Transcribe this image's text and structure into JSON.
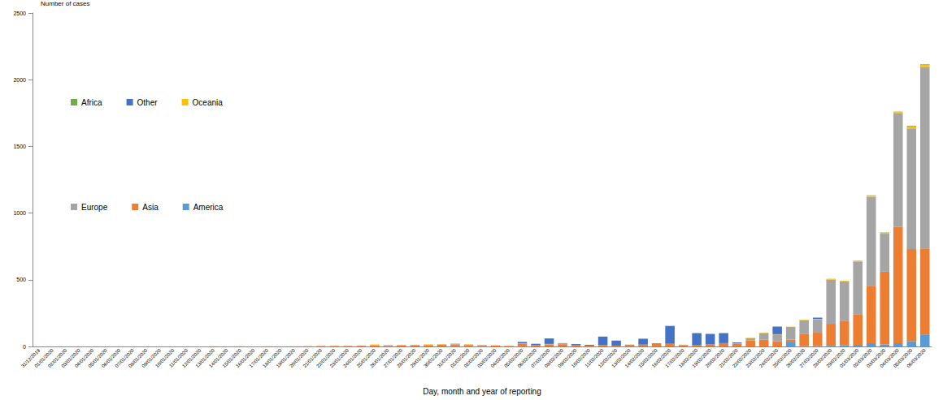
{
  "chart_data": {
    "type": "bar",
    "stacked": true,
    "ylabel": "Number of cases",
    "xlabel": "Day, month and year of reporting",
    "legend": "upper left",
    "grid": false,
    "ylim": [
      0,
      2500
    ],
    "yticks": [
      0,
      500,
      1000,
      1500,
      2000,
      2500
    ],
    "categories": [
      "31/12/2019",
      "01/01/2020",
      "02/01/2020",
      "03/01/2020",
      "04/01/2020",
      "05/01/2020",
      "06/01/2020",
      "07/01/2020",
      "08/01/2020",
      "09/01/2020",
      "10/01/2020",
      "11/01/2020",
      "12/01/2020",
      "13/01/2020",
      "14/01/2020",
      "15/01/2020",
      "16/01/2020",
      "17/01/2020",
      "18/01/2020",
      "19/01/2020",
      "20/01/2020",
      "21/01/2020",
      "22/01/2020",
      "23/01/2020",
      "24/01/2020",
      "25/01/2020",
      "26/01/2020",
      "27/01/2020",
      "28/01/2020",
      "29/01/2020",
      "30/01/2020",
      "31/01/2020",
      "01/02/2020",
      "02/02/2020",
      "03/02/2020",
      "04/02/2020",
      "05/02/2020",
      "06/02/2020",
      "07/02/2020",
      "08/02/2020",
      "09/02/2020",
      "10/02/2020",
      "11/02/2020",
      "12/02/2020",
      "13/02/2020",
      "14/02/2020",
      "15/02/2020",
      "16/02/2020",
      "17/02/2020",
      "18/02/2020",
      "19/02/2020",
      "20/02/2020",
      "21/02/2020",
      "22/02/2020",
      "23/02/2020",
      "24/02/2020",
      "25/02/2020",
      "26/02/2020",
      "27/02/2020",
      "28/02/2020",
      "29/02/2020",
      "01/03/2020",
      "02/03/2020",
      "03/03/2020",
      "04/03/2020",
      "05/03/2020",
      "06/03/2020"
    ],
    "series": [
      {
        "name": "Africa",
        "color": "#70ad47",
        "values": [
          0,
          0,
          0,
          0,
          0,
          0,
          0,
          0,
          0,
          0,
          0,
          0,
          0,
          0,
          0,
          0,
          0,
          0,
          0,
          0,
          0,
          0,
          0,
          0,
          0,
          0,
          0,
          0,
          0,
          0,
          0,
          0,
          0,
          0,
          0,
          0,
          0,
          0,
          0,
          0,
          0,
          0,
          0,
          0,
          0,
          0,
          0,
          0,
          1,
          0,
          0,
          0,
          0,
          0,
          0,
          0,
          0,
          0,
          0,
          1,
          0,
          1,
          2,
          2,
          3,
          5,
          5
        ]
      },
      {
        "name": "Other",
        "color": "#4472c4",
        "values": [
          0,
          0,
          0,
          0,
          0,
          0,
          0,
          0,
          0,
          0,
          0,
          0,
          0,
          0,
          0,
          0,
          0,
          0,
          0,
          0,
          0,
          0,
          0,
          0,
          0,
          0,
          0,
          0,
          0,
          0,
          0,
          0,
          0,
          0,
          0,
          0,
          10,
          10,
          41,
          3,
          6,
          6,
          65,
          39,
          0,
          44,
          0,
          134,
          0,
          88,
          79,
          75,
          6,
          0,
          0,
          57,
          0,
          0,
          10,
          0,
          0,
          0,
          0,
          0,
          0,
          0,
          0
        ]
      },
      {
        "name": "Oceania",
        "color": "#ffc000",
        "values": [
          0,
          0,
          0,
          0,
          0,
          0,
          0,
          0,
          0,
          0,
          0,
          0,
          0,
          0,
          0,
          0,
          0,
          0,
          0,
          0,
          0,
          0,
          0,
          0,
          0,
          4,
          1,
          1,
          0,
          3,
          1,
          1,
          3,
          2,
          0,
          0,
          0,
          0,
          0,
          0,
          0,
          0,
          0,
          0,
          0,
          0,
          0,
          0,
          0,
          0,
          0,
          0,
          0,
          3,
          4,
          2,
          2,
          4,
          3,
          6,
          5,
          6,
          8,
          8,
          12,
          15,
          15
        ]
      },
      {
        "name": "Europe",
        "color": "#a5a5a5",
        "values": [
          0,
          0,
          0,
          0,
          0,
          0,
          0,
          0,
          0,
          0,
          0,
          0,
          0,
          0,
          0,
          0,
          0,
          0,
          0,
          0,
          0,
          0,
          0,
          0,
          0,
          3,
          0,
          0,
          4,
          3,
          2,
          6,
          3,
          0,
          2,
          0,
          3,
          0,
          4,
          5,
          0,
          0,
          2,
          0,
          1,
          0,
          1,
          0,
          2,
          0,
          0,
          0,
          2,
          17,
          50,
          50,
          95,
          105,
          100,
          330,
          295,
          395,
          668,
          285,
          850,
          905,
          1360
        ]
      },
      {
        "name": "Asia",
        "color": "#ed7d31",
        "values": [
          0,
          0,
          0,
          0,
          0,
          0,
          0,
          0,
          0,
          0,
          0,
          0,
          0,
          1,
          0,
          1,
          0,
          1,
          0,
          1,
          2,
          3,
          4,
          4,
          5,
          8,
          6,
          9,
          8,
          10,
          14,
          14,
          10,
          8,
          6,
          4,
          20,
          10,
          15,
          17,
          12,
          5,
          7,
          5,
          12,
          14,
          24,
          20,
          10,
          12,
          15,
          25,
          22,
          45,
          50,
          40,
          15,
          90,
          100,
          165,
          185,
          230,
          430,
          545,
          870,
          690,
          645
        ]
      },
      {
        "name": "America",
        "color": "#5b9bd5",
        "values": [
          0,
          0,
          0,
          0,
          0,
          0,
          0,
          0,
          0,
          0,
          0,
          0,
          0,
          0,
          0,
          0,
          0,
          0,
          0,
          0,
          0,
          1,
          0,
          0,
          1,
          0,
          3,
          0,
          0,
          0,
          0,
          1,
          1,
          2,
          0,
          0,
          1,
          0,
          0,
          0,
          0,
          1,
          0,
          0,
          1,
          0,
          0,
          0,
          0,
          0,
          0,
          0,
          0,
          0,
          0,
          0,
          36,
          2,
          3,
          5,
          8,
          12,
          25,
          15,
          25,
          40,
          90
        ]
      }
    ]
  }
}
